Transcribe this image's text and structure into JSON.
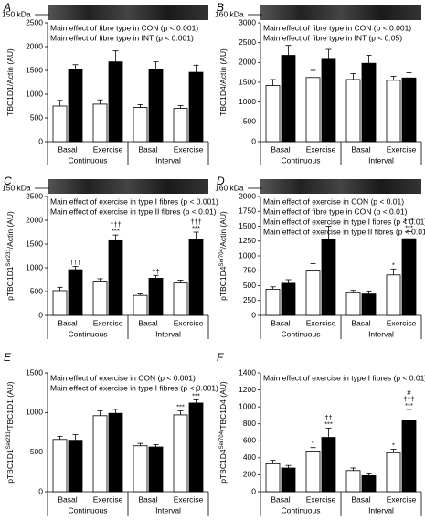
{
  "chart_data": [
    {
      "type": "bar",
      "panel": "A",
      "blot_label": "150 kDa",
      "ylabel": [
        "TBC1D1/Actin (AU)"
      ],
      "annotations": [
        "Main effect of fibre type in CON (p < 0.001)",
        "Main effect of fibre type in INT (p < 0.001)"
      ],
      "categories": [
        "Basal",
        "Exercise",
        "Basal",
        "Exercise"
      ],
      "groups": [
        "Continuous",
        "Interval"
      ],
      "ylim": [
        0,
        2500
      ],
      "yticks": [
        0,
        500,
        1000,
        1500,
        2000,
        2500
      ],
      "series": [
        {
          "color": "#ffffff",
          "values": [
            750,
            790,
            720,
            700
          ],
          "errors": [
            120,
            90,
            60,
            60
          ],
          "symbols": [
            [],
            [],
            [],
            []
          ]
        },
        {
          "color": "#000000",
          "values": [
            1520,
            1680,
            1530,
            1460
          ],
          "errors": [
            100,
            230,
            150,
            150
          ],
          "symbols": [
            [],
            [],
            [],
            []
          ]
        }
      ]
    },
    {
      "type": "bar",
      "panel": "B",
      "blot_label": "160 kDa",
      "ylabel": [
        "TBC1D4/Actin (AU)"
      ],
      "annotations": [
        "Main effect of fibre type in CON (p < 0.001)",
        "Main effect of fibre type in INT (p < 0.05)"
      ],
      "categories": [
        "Basal",
        "Exercise",
        "Basal",
        "Exercise"
      ],
      "groups": [
        "Continuous",
        "Interval"
      ],
      "ylim": [
        0,
        3000
      ],
      "yticks": [
        0,
        500,
        1000,
        1500,
        2000,
        2500,
        3000
      ],
      "series": [
        {
          "color": "#ffffff",
          "values": [
            1420,
            1620,
            1570,
            1550
          ],
          "errors": [
            150,
            180,
            150,
            100
          ],
          "symbols": [
            [],
            [],
            [],
            []
          ]
        },
        {
          "color": "#000000",
          "values": [
            2180,
            2080,
            1980,
            1610
          ],
          "errors": [
            250,
            250,
            200,
            130
          ],
          "symbols": [
            [],
            [],
            [],
            []
          ]
        }
      ]
    },
    {
      "type": "bar",
      "panel": "C",
      "blot_label": "150 kDa",
      "ylabel": [
        "pTBC1D1",
        "Ser231",
        "/Actin (AU)"
      ],
      "annotations": [
        "Main effect of exercise in type I fibres (p < 0.001)",
        "Main effect of exercise in type II fibres (p < 0.01)"
      ],
      "categories": [
        "Basal",
        "Exercise",
        "Basal",
        "Exercise"
      ],
      "groups": [
        "Continuous",
        "Interval"
      ],
      "ylim": [
        0,
        2500
      ],
      "yticks": [
        0,
        500,
        1000,
        1500,
        2000,
        2500
      ],
      "series": [
        {
          "color": "#ffffff",
          "values": [
            520,
            720,
            420,
            680
          ],
          "errors": [
            70,
            50,
            30,
            60
          ],
          "symbols": [
            [],
            [],
            [],
            []
          ]
        },
        {
          "color": "#000000",
          "values": [
            960,
            1570,
            780,
            1600
          ],
          "errors": [
            70,
            120,
            60,
            150
          ],
          "symbols": [
            [
              "†††"
            ],
            [
              "†††",
              "***"
            ],
            [
              "††"
            ],
            [
              "†††",
              "***"
            ]
          ]
        }
      ]
    },
    {
      "type": "bar",
      "panel": "D",
      "blot_label": "160 kDa",
      "ylabel": [
        "pTBC1D4",
        "Ser704",
        "/Actin (AU)"
      ],
      "annotations": [
        "Main effect of exercise in CON (p < 0.01)",
        "Main effect of fibre type in CON (p < 0.01)",
        "Main effect of exercise in type I fibres (p < 0.01)",
        "Main effect of exercise in type II fibres (p < 0.01)"
      ],
      "categories": [
        "Basal",
        "Exercise",
        "Basal",
        "Exercise"
      ],
      "groups": [
        "Continuous",
        "Interval"
      ],
      "ylim": [
        0,
        2000
      ],
      "yticks": [
        0,
        250,
        500,
        750,
        1000,
        1250,
        1500,
        1750,
        2000
      ],
      "series": [
        {
          "color": "#ffffff",
          "values": [
            440,
            760,
            380,
            680
          ],
          "errors": [
            40,
            110,
            40,
            100
          ],
          "symbols": [
            [],
            [],
            [],
            [
              "*"
            ]
          ]
        },
        {
          "color": "#000000",
          "values": [
            540,
            1280,
            360,
            1290
          ],
          "errors": [
            60,
            220,
            50,
            120
          ],
          "symbols": [
            [],
            [],
            [],
            [
              "†††",
              "***"
            ]
          ]
        }
      ]
    },
    {
      "type": "bar",
      "panel": "E",
      "ylabel": [
        "pTBC1D1",
        "Ser231",
        "/TBC1D1 (AU)"
      ],
      "annotations": [
        "Main effect of exercise in CON (p < 0.001)",
        "Main effect of exercise in type I fibres (p < 0.001)"
      ],
      "categories": [
        "Basal",
        "Exercise",
        "Basal",
        "Exercise"
      ],
      "groups": [
        "Continuous",
        "Interval"
      ],
      "ylim": [
        0,
        1500
      ],
      "yticks": [
        0,
        500,
        1000,
        1500
      ],
      "series": [
        {
          "color": "#ffffff",
          "values": [
            660,
            960,
            580,
            970
          ],
          "errors": [
            40,
            60,
            30,
            50
          ],
          "symbols": [
            [],
            [],
            [],
            [
              "***"
            ]
          ]
        },
        {
          "color": "#000000",
          "values": [
            650,
            990,
            565,
            1120
          ],
          "errors": [
            70,
            50,
            30,
            40
          ],
          "symbols": [
            [],
            [],
            [],
            [
              "†",
              "***"
            ]
          ]
        }
      ]
    },
    {
      "type": "bar",
      "panel": "F",
      "ylabel": [
        "pTBC1D4",
        "Ser704",
        "/TBC1D4 (AU)"
      ],
      "annotations": [
        "Main effect of exercise in type I fibres (p < 0.01)"
      ],
      "categories": [
        "Basal",
        "Exercise",
        "Basal",
        "Exercise"
      ],
      "groups": [
        "Continuous",
        "Interval"
      ],
      "ylim": [
        0,
        1400
      ],
      "yticks": [
        0,
        200,
        400,
        600,
        800,
        1000,
        1200,
        1400
      ],
      "series": [
        {
          "color": "#ffffff",
          "values": [
            330,
            480,
            250,
            460
          ],
          "errors": [
            40,
            40,
            30,
            40
          ],
          "symbols": [
            [],
            [
              "*"
            ],
            [],
            [
              "*"
            ]
          ]
        },
        {
          "color": "#000000",
          "values": [
            280,
            640,
            190,
            840
          ],
          "errors": [
            30,
            110,
            20,
            130
          ],
          "symbols": [
            [],
            [
              "††",
              "***"
            ],
            [],
            [
              "#",
              "†††",
              "***"
            ]
          ]
        }
      ]
    }
  ]
}
